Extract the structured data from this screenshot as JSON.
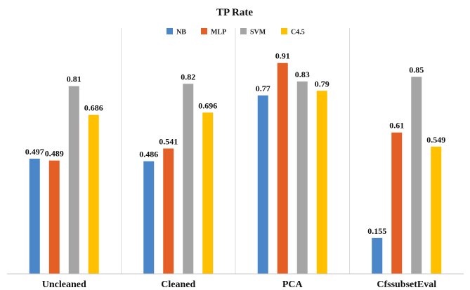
{
  "chart_data": {
    "type": "bar",
    "title": "TP Rate",
    "xlabel": "",
    "ylabel": "",
    "categories": [
      "Uncleaned",
      "Cleaned",
      "PCA",
      "CfssubsetEval"
    ],
    "series": [
      {
        "name": "NB",
        "color": "#4a86c8",
        "values": [
          0.497,
          0.486,
          0.77,
          0.155
        ]
      },
      {
        "name": "MLP",
        "color": "#e35f26",
        "values": [
          0.489,
          0.541,
          0.91,
          0.61
        ]
      },
      {
        "name": "SVM",
        "color": "#a5a5a5",
        "values": [
          0.81,
          0.82,
          0.83,
          0.85
        ]
      },
      {
        "name": "C4.5",
        "color": "#ffc000",
        "values": [
          0.686,
          0.696,
          0.79,
          0.549
        ]
      }
    ],
    "data_labels": [
      [
        "0.497",
        "0.489",
        "0.81",
        "0.686"
      ],
      [
        "0.486",
        "0.541",
        "0.82",
        "0.696"
      ],
      [
        "0.77",
        "0.91",
        "0.83",
        "0.79"
      ],
      [
        "0.155",
        "0.61",
        "0.85",
        "0.549"
      ]
    ],
    "ylim": [
      0,
      1
    ],
    "grid": false,
    "legend_position": "top-center"
  }
}
